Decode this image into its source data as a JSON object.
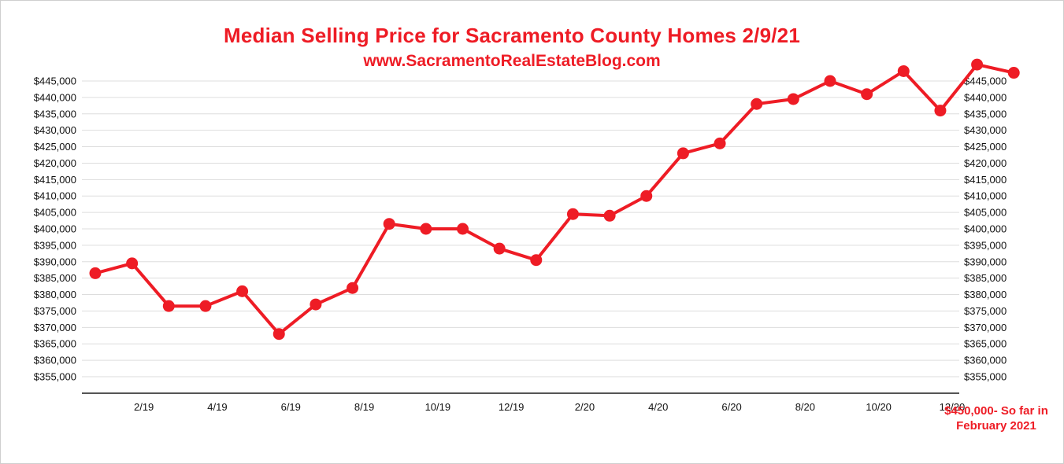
{
  "colors": {
    "line": "#ee1c25",
    "grid": "#dddddd",
    "axis": "#555555",
    "text": "#111111"
  },
  "note": {
    "line1": "$450,000- So far in",
    "line2": "February 2021"
  },
  "chart_data": {
    "type": "line",
    "title": "Median Selling Price for Sacramento County Homes 2/9/21",
    "subtitle": "www.SacramentoRealEstateBlog.com",
    "xlabel": "",
    "ylabel": "",
    "ylim": [
      350000,
      450000
    ],
    "grid": true,
    "y_ticks": [
      355000,
      360000,
      365000,
      370000,
      375000,
      380000,
      385000,
      390000,
      395000,
      400000,
      405000,
      410000,
      415000,
      420000,
      425000,
      430000,
      435000,
      440000,
      445000
    ],
    "y_tick_labels": [
      "$355,000",
      "$360,000",
      "$365,000",
      "$370,000",
      "$375,000",
      "$380,000",
      "$385,000",
      "$390,000",
      "$395,000",
      "$400,000",
      "$405,000",
      "$410,000",
      "$415,000",
      "$420,000",
      "$425,000",
      "$430,000",
      "$435,000",
      "$440,000",
      "$445,000"
    ],
    "x_tick_labels": [
      {
        "index": 1,
        "label": "2/19"
      },
      {
        "index": 3,
        "label": "4/19"
      },
      {
        "index": 5,
        "label": "6/19"
      },
      {
        "index": 7,
        "label": "8/19"
      },
      {
        "index": 9,
        "label": "10/19"
      },
      {
        "index": 11,
        "label": "12/19"
      },
      {
        "index": 13,
        "label": "2/20"
      },
      {
        "index": 15,
        "label": "4/20"
      },
      {
        "index": 17,
        "label": "6/20"
      },
      {
        "index": 19,
        "label": "8/20"
      },
      {
        "index": 21,
        "label": "10/20"
      },
      {
        "index": 23,
        "label": "12/20"
      }
    ],
    "series": [
      {
        "values": [
          386500,
          389500,
          376500,
          376500,
          381000,
          368000,
          377000,
          382000,
          401500,
          400000,
          400000,
          394000,
          390500,
          404500,
          404000,
          410000,
          423000,
          426000,
          438000,
          439500,
          445000,
          441000,
          448000,
          436000,
          450000,
          447500
        ]
      }
    ]
  }
}
